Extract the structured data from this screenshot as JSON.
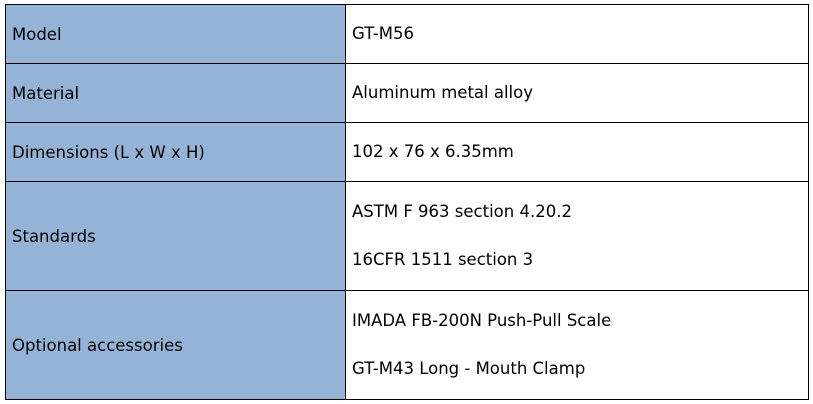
{
  "colors": {
    "label_bg": "#95b3d7"
  },
  "rows": [
    {
      "label": "Model",
      "values": [
        "GT-M56"
      ]
    },
    {
      "label": "Material",
      "values": [
        "Aluminum metal alloy"
      ]
    },
    {
      "label": "Dimensions (L x W x H)",
      "values": [
        "102 x 76 x 6.35mm"
      ]
    },
    {
      "label": "Standards",
      "values": [
        "ASTM F 963  section 4.20.2",
        "16CFR 1511 section 3"
      ]
    },
    {
      "label": "Optional accessories",
      "values": [
        "IMADA FB-200N Push-Pull Scale",
        "GT-M43 Long - Mouth Clamp"
      ]
    }
  ]
}
